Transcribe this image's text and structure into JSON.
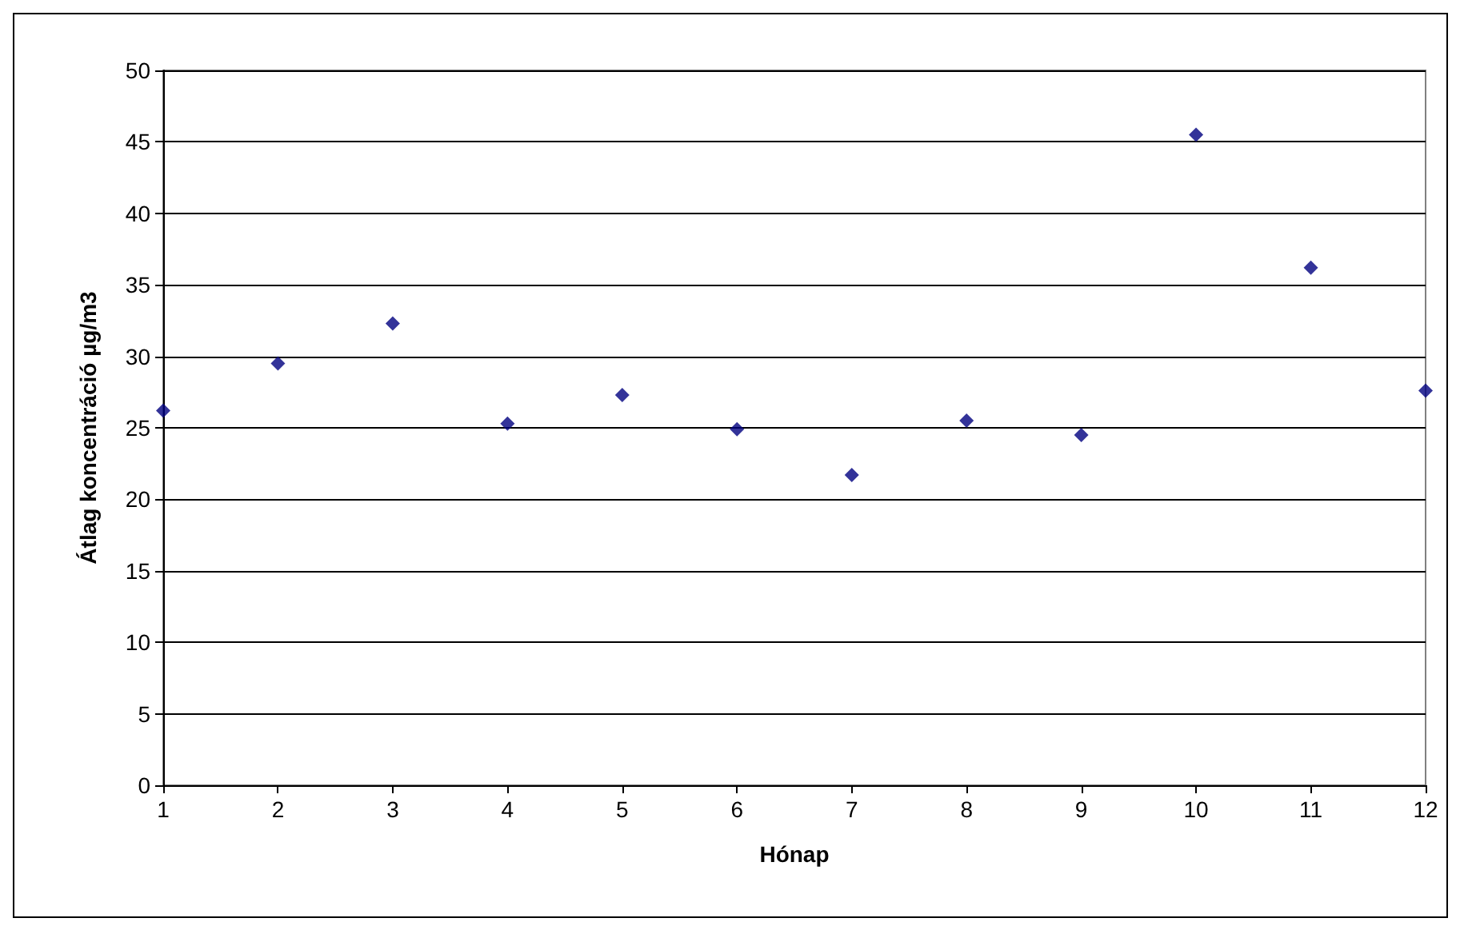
{
  "chart_data": {
    "type": "scatter",
    "xlabel": "Hónap",
    "ylabel": "Átlag koncentráció µg/m3",
    "x": [
      1,
      2,
      3,
      4,
      5,
      6,
      7,
      8,
      9,
      10,
      11,
      12
    ],
    "series": [
      {
        "color": "#000080",
        "values": [
          26.2,
          29.5,
          32.3,
          25.3,
          27.3,
          24.9,
          21.7,
          25.5,
          24.5,
          45.5,
          36.2,
          27.6
        ]
      }
    ],
    "xlim": [
      1,
      12
    ],
    "xticks": [
      1,
      2,
      3,
      4,
      5,
      6,
      7,
      8,
      9,
      10,
      11,
      12
    ],
    "ylim": [
      0,
      50
    ],
    "yticks": [
      0,
      5,
      10,
      15,
      20,
      25,
      30,
      35,
      40,
      45,
      50
    ],
    "grid": "y",
    "marker": "diamond"
  }
}
